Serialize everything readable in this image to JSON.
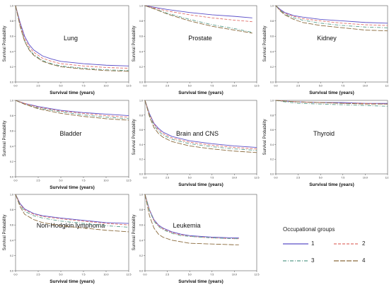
{
  "chart_data": [
    {
      "type": "line",
      "title": "Lung",
      "xlabel": "Survival time (years)",
      "ylabel": "Survival Probability",
      "xlim": [
        0,
        12.5
      ],
      "ylim": [
        0,
        1.0
      ],
      "xticks": [
        "0.0",
        "2.5",
        "5.0",
        "7.5",
        "10.0",
        "12.5"
      ],
      "yticks": [
        "0.0",
        "0.2",
        "0.4",
        "0.6",
        "0.8",
        "1.0"
      ],
      "grid": false,
      "series": [
        {
          "name": "1",
          "x": [
            0,
            0.5,
            1,
            1.5,
            2,
            3,
            4,
            5,
            7.5,
            10,
            12.5
          ],
          "y": [
            1.0,
            0.78,
            0.6,
            0.49,
            0.42,
            0.34,
            0.3,
            0.27,
            0.24,
            0.22,
            0.21
          ]
        },
        {
          "name": "2",
          "x": [
            0,
            0.5,
            1,
            1.5,
            2,
            3,
            4,
            5,
            7.5,
            10,
            12.5
          ],
          "y": [
            1.0,
            0.76,
            0.57,
            0.46,
            0.39,
            0.31,
            0.27,
            0.24,
            0.21,
            0.19,
            0.18
          ]
        },
        {
          "name": "3",
          "x": [
            0,
            0.5,
            1,
            1.5,
            2,
            3,
            4,
            5,
            7.5,
            10,
            12.5
          ],
          "y": [
            1.0,
            0.74,
            0.54,
            0.43,
            0.36,
            0.28,
            0.24,
            0.21,
            0.18,
            0.16,
            0.15
          ]
        },
        {
          "name": "4",
          "x": [
            0,
            0.5,
            1,
            1.5,
            2,
            3,
            4,
            5,
            7.5,
            10,
            12.5
          ],
          "y": [
            1.0,
            0.73,
            0.53,
            0.42,
            0.35,
            0.27,
            0.23,
            0.2,
            0.17,
            0.15,
            0.14
          ]
        }
      ]
    },
    {
      "type": "line",
      "title": "Prostate",
      "xlabel": "Survival time (years)",
      "ylabel": "Survival Probability",
      "xlim": [
        0,
        12.5
      ],
      "ylim": [
        0,
        1.0
      ],
      "xticks": [
        "0.0",
        "2.5",
        "5.0",
        "7.5",
        "10.0",
        "12.5"
      ],
      "yticks": [
        "0.0",
        "0.2",
        "0.4",
        "0.6",
        "0.8",
        "1.0"
      ],
      "grid": false,
      "series": [
        {
          "name": "1",
          "x": [
            0,
            1,
            2.5,
            5,
            7.5,
            10,
            12
          ],
          "y": [
            1.0,
            0.98,
            0.95,
            0.91,
            0.88,
            0.86,
            0.84
          ]
        },
        {
          "name": "2",
          "x": [
            0,
            1,
            2.5,
            5,
            7.5,
            10,
            12
          ],
          "y": [
            1.0,
            0.97,
            0.93,
            0.88,
            0.84,
            0.81,
            0.79
          ]
        },
        {
          "name": "3",
          "x": [
            0,
            1,
            2.5,
            5,
            7.5,
            10,
            12
          ],
          "y": [
            1.0,
            0.96,
            0.9,
            0.82,
            0.75,
            0.7,
            0.65
          ]
        },
        {
          "name": "4",
          "x": [
            0,
            1,
            2.5,
            5,
            7.5,
            10,
            12
          ],
          "y": [
            1.0,
            0.96,
            0.89,
            0.8,
            0.73,
            0.68,
            0.64
          ]
        }
      ]
    },
    {
      "type": "line",
      "title": "Kidney",
      "xlabel": "Survival time (years)",
      "ylabel": "Survival Probability",
      "xlim": [
        0,
        12.5
      ],
      "ylim": [
        0,
        1.0
      ],
      "xticks": [
        "0.0",
        "2.5",
        "5.0",
        "7.5",
        "10.0",
        "12.5"
      ],
      "yticks": [
        "0.0",
        "0.2",
        "0.4",
        "0.6",
        "0.8",
        "1.0"
      ],
      "grid": false,
      "series": [
        {
          "name": "1",
          "x": [
            0,
            0.5,
            1,
            2,
            3,
            5,
            7.5,
            10,
            12.5
          ],
          "y": [
            1.0,
            0.95,
            0.91,
            0.87,
            0.85,
            0.82,
            0.8,
            0.78,
            0.77
          ]
        },
        {
          "name": "2",
          "x": [
            0,
            0.5,
            1,
            2,
            3,
            5,
            7.5,
            10,
            12.5
          ],
          "y": [
            1.0,
            0.94,
            0.9,
            0.86,
            0.83,
            0.8,
            0.77,
            0.75,
            0.74
          ]
        },
        {
          "name": "3",
          "x": [
            0,
            0.5,
            1,
            2,
            3,
            5,
            7.5,
            10,
            12.5
          ],
          "y": [
            1.0,
            0.94,
            0.89,
            0.84,
            0.81,
            0.77,
            0.74,
            0.72,
            0.71
          ]
        },
        {
          "name": "4",
          "x": [
            0,
            0.5,
            1,
            2,
            3,
            5,
            7.5,
            10,
            12.5
          ],
          "y": [
            1.0,
            0.93,
            0.88,
            0.82,
            0.78,
            0.74,
            0.71,
            0.68,
            0.67
          ]
        }
      ]
    },
    {
      "type": "line",
      "title": "Bladder",
      "xlabel": "Survival time (years)",
      "ylabel": "Survival Probability",
      "xlim": [
        0,
        12.5
      ],
      "ylim": [
        0,
        1.0
      ],
      "xticks": [
        "0.0",
        "2.5",
        "5.0",
        "7.5",
        "10.0",
        "12.5"
      ],
      "yticks": [
        "0.0",
        "0.2",
        "0.4",
        "0.6",
        "0.8",
        "1.0"
      ],
      "grid": false,
      "series": [
        {
          "name": "1",
          "x": [
            0,
            1,
            2.5,
            5,
            7.5,
            10,
            12.5
          ],
          "y": [
            1.0,
            0.96,
            0.92,
            0.87,
            0.84,
            0.82,
            0.8
          ]
        },
        {
          "name": "2",
          "x": [
            0,
            1,
            2.5,
            5,
            7.5,
            10,
            12.5
          ],
          "y": [
            1.0,
            0.96,
            0.91,
            0.86,
            0.83,
            0.8,
            0.78
          ]
        },
        {
          "name": "3",
          "x": [
            0,
            1,
            2.5,
            5,
            7.5,
            10,
            12.5
          ],
          "y": [
            1.0,
            0.95,
            0.9,
            0.85,
            0.81,
            0.78,
            0.76
          ]
        },
        {
          "name": "4",
          "x": [
            0,
            1,
            2.5,
            5,
            7.5,
            10,
            12.5
          ],
          "y": [
            1.0,
            0.95,
            0.89,
            0.83,
            0.79,
            0.76,
            0.74
          ]
        }
      ]
    },
    {
      "type": "line",
      "title": "Brain and CNS",
      "xlabel": "Survival time (years)",
      "ylabel": "Survival Probability",
      "xlim": [
        0,
        12.5
      ],
      "ylim": [
        0,
        1.0
      ],
      "xticks": [
        "0.0",
        "2.5",
        "5.0",
        "7.5",
        "10.0",
        "12.5"
      ],
      "yticks": [
        "0.0",
        "0.2",
        "0.4",
        "0.6",
        "0.8",
        "1.0"
      ],
      "grid": false,
      "series": [
        {
          "name": "1",
          "x": [
            0,
            0.5,
            1,
            1.5,
            2,
            3,
            5,
            7.5,
            10,
            12.5
          ],
          "y": [
            1.0,
            0.82,
            0.69,
            0.62,
            0.57,
            0.51,
            0.45,
            0.41,
            0.38,
            0.36
          ]
        },
        {
          "name": "2",
          "x": [
            0,
            0.5,
            1,
            1.5,
            2,
            3,
            5,
            7.5,
            10,
            12.5
          ],
          "y": [
            1.0,
            0.81,
            0.68,
            0.6,
            0.55,
            0.49,
            0.43,
            0.39,
            0.36,
            0.34
          ]
        },
        {
          "name": "3",
          "x": [
            0,
            0.5,
            1,
            1.5,
            2,
            3,
            5,
            7.5,
            10,
            12.5
          ],
          "y": [
            1.0,
            0.8,
            0.66,
            0.58,
            0.53,
            0.47,
            0.41,
            0.37,
            0.34,
            0.32
          ]
        },
        {
          "name": "4",
          "x": [
            0,
            0.5,
            1,
            1.5,
            2,
            3,
            5,
            7.5,
            10,
            12.5
          ],
          "y": [
            1.0,
            0.78,
            0.63,
            0.55,
            0.5,
            0.44,
            0.38,
            0.34,
            0.31,
            0.29
          ]
        }
      ]
    },
    {
      "type": "line",
      "title": "Thyroid",
      "xlabel": "Survival time (years)",
      "ylabel": "Survival Probability",
      "xlim": [
        0,
        12.5
      ],
      "ylim": [
        0,
        1.0
      ],
      "xticks": [
        "0.0",
        "2.5",
        "5.0",
        "7.5",
        "10.0",
        "12.5"
      ],
      "yticks": [
        "0.0",
        "0.2",
        "0.4",
        "0.6",
        "0.8",
        "1.0"
      ],
      "grid": false,
      "series": [
        {
          "name": "1",
          "x": [
            0,
            1,
            2.5,
            5,
            7.5,
            10,
            12.5
          ],
          "y": [
            1.0,
            0.99,
            0.98,
            0.97,
            0.97,
            0.96,
            0.96
          ]
        },
        {
          "name": "2",
          "x": [
            0,
            1,
            2.5,
            5,
            7.5,
            10,
            12.5
          ],
          "y": [
            1.0,
            0.99,
            0.98,
            0.97,
            0.96,
            0.96,
            0.95
          ]
        },
        {
          "name": "3",
          "x": [
            0,
            1,
            2.5,
            5,
            7.5,
            10,
            12.5
          ],
          "y": [
            1.0,
            0.98,
            0.96,
            0.95,
            0.94,
            0.93,
            0.92
          ]
        },
        {
          "name": "4",
          "x": [
            0,
            1,
            2.5,
            5,
            7.5,
            10,
            12.5
          ],
          "y": [
            1.0,
            0.99,
            0.98,
            0.97,
            0.96,
            0.95,
            0.95
          ]
        }
      ]
    },
    {
      "type": "line",
      "title": "Non-Hodgkin lymphoma",
      "xlabel": "Survival time (years)",
      "ylabel": "Survival Probability",
      "xlim": [
        0,
        12.5
      ],
      "ylim": [
        0,
        1.0
      ],
      "xticks": [
        "0.0",
        "2.5",
        "5.0",
        "7.5",
        "10.0",
        "12.5"
      ],
      "yticks": [
        "0.0",
        "0.2",
        "0.4",
        "0.6",
        "0.8",
        "1.0"
      ],
      "grid": false,
      "series": [
        {
          "name": "1",
          "x": [
            0,
            0.5,
            1,
            2,
            3,
            5,
            7.5,
            10,
            12.5
          ],
          "y": [
            1.0,
            0.88,
            0.81,
            0.75,
            0.72,
            0.69,
            0.66,
            0.63,
            0.62
          ]
        },
        {
          "name": "2",
          "x": [
            0,
            0.5,
            1,
            2,
            3,
            5,
            7.5,
            10,
            12.5
          ],
          "y": [
            1.0,
            0.87,
            0.8,
            0.74,
            0.71,
            0.68,
            0.65,
            0.62,
            0.6
          ]
        },
        {
          "name": "3",
          "x": [
            0,
            0.5,
            1,
            2,
            3,
            5,
            7.5,
            10,
            12.5
          ],
          "y": [
            1.0,
            0.86,
            0.78,
            0.72,
            0.69,
            0.65,
            0.62,
            0.59,
            0.57
          ]
        },
        {
          "name": "4",
          "x": [
            0,
            0.5,
            1,
            2,
            3,
            5,
            7.5,
            10,
            12.5
          ],
          "y": [
            1.0,
            0.84,
            0.74,
            0.67,
            0.63,
            0.59,
            0.56,
            0.53,
            0.51
          ]
        }
      ]
    },
    {
      "type": "line",
      "title": "Leukemia",
      "xlabel": "Survival time (years)",
      "ylabel": "Survival Probability",
      "xlim": [
        0,
        12.5
      ],
      "ylim": [
        0,
        1.0
      ],
      "xticks": [
        "0.0",
        "2.5",
        "5.0",
        "7.5",
        "10.0",
        "12.5"
      ],
      "yticks": [
        "0.0",
        "0.2",
        "0.4",
        "0.6",
        "0.8",
        "1.0"
      ],
      "grid": false,
      "series": [
        {
          "name": "1",
          "x": [
            0,
            0.5,
            1,
            1.5,
            2,
            3,
            4,
            5,
            7.5,
            10,
            10.5
          ],
          "y": [
            1.0,
            0.8,
            0.67,
            0.6,
            0.56,
            0.51,
            0.48,
            0.46,
            0.44,
            0.43,
            0.43
          ]
        },
        {
          "name": "2",
          "x": [
            0,
            0.5,
            1,
            1.5,
            2,
            3,
            4,
            5,
            7.5,
            10,
            10.5
          ],
          "y": [
            1.0,
            0.79,
            0.66,
            0.59,
            0.55,
            0.5,
            0.47,
            0.45,
            0.43,
            0.42,
            0.42
          ]
        },
        {
          "name": "3",
          "x": [
            0,
            0.5,
            1,
            1.5,
            2,
            3,
            4,
            5,
            7.5,
            10,
            10.5
          ],
          "y": [
            1.0,
            0.79,
            0.65,
            0.58,
            0.54,
            0.49,
            0.46,
            0.45,
            0.43,
            0.42,
            0.42
          ]
        },
        {
          "name": "4",
          "x": [
            0,
            0.5,
            1,
            1.5,
            2,
            3,
            4,
            5,
            7.5,
            10,
            10.5
          ],
          "y": [
            1.0,
            0.72,
            0.56,
            0.48,
            0.44,
            0.4,
            0.38,
            0.36,
            0.35,
            0.34,
            0.34
          ]
        }
      ]
    }
  ],
  "legend": {
    "title": "Occupational groups",
    "items": [
      {
        "label": "1",
        "color": "#5b4fc8",
        "dash": "solid"
      },
      {
        "label": "2",
        "color": "#e0706a",
        "dash": "dashed"
      },
      {
        "label": "3",
        "color": "#5a9e8c",
        "dash": "dashdot"
      },
      {
        "label": "4",
        "color": "#8a6a3c",
        "dash": "longdash"
      }
    ]
  }
}
